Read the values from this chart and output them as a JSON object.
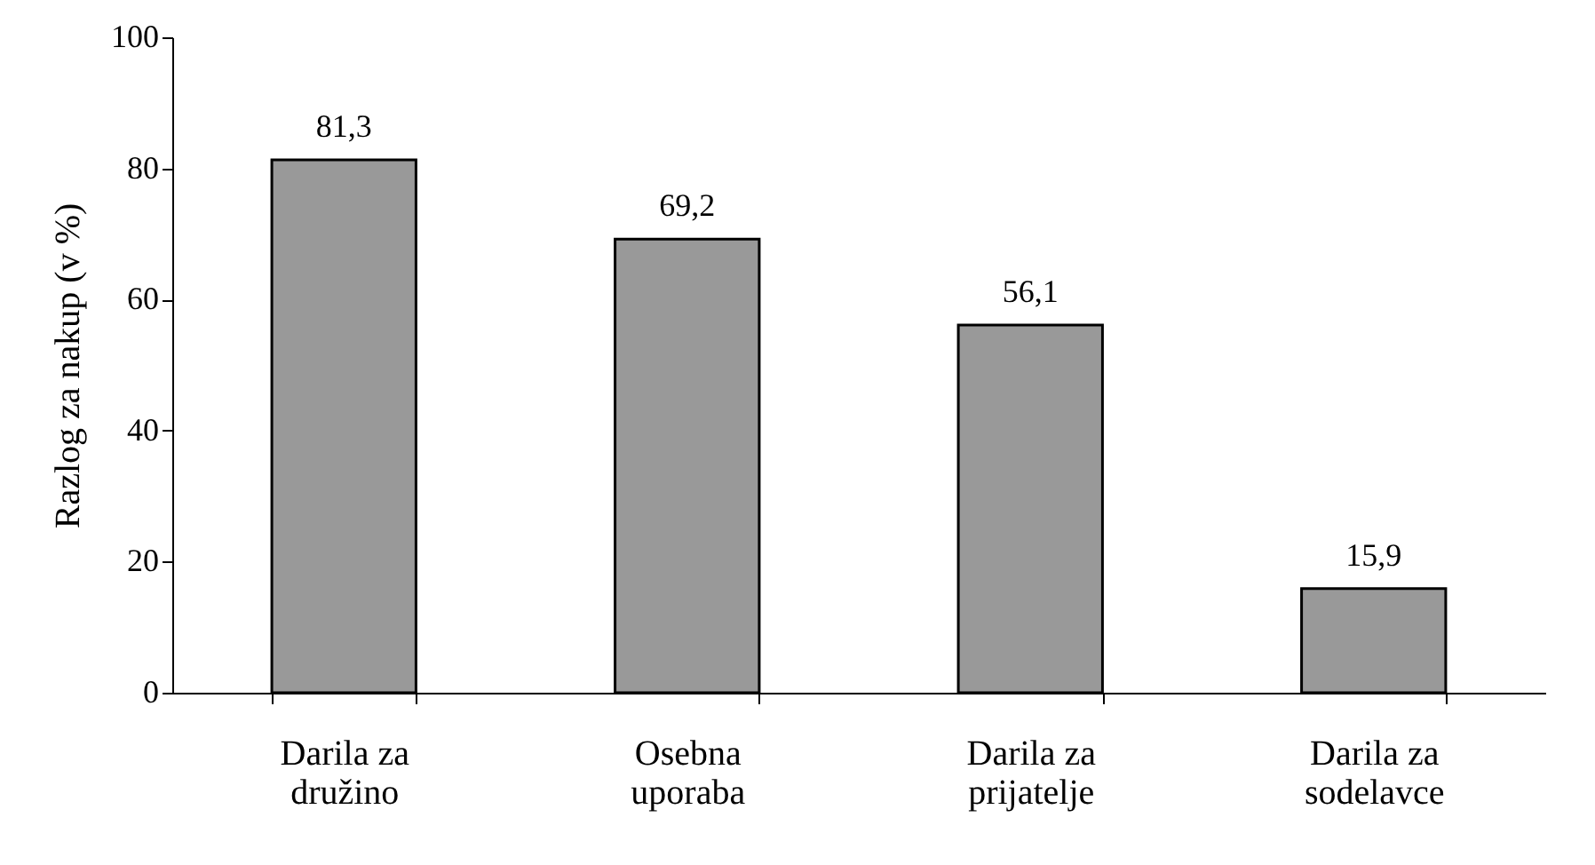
{
  "chart_data": {
    "type": "bar",
    "ylabel": "Razlog za nakup (v %)",
    "categories": [
      "Darila za družino",
      "Osebna uporaba",
      "Darila za prijatelje",
      "Darila za sodelavce"
    ],
    "values": [
      81.3,
      69.2,
      56.1,
      15.9
    ],
    "value_labels": [
      "81,3",
      "69,2",
      "56,1",
      "15,9"
    ],
    "color": "#999999",
    "ylim": [
      0,
      100
    ],
    "yticks": [
      0,
      20,
      40,
      60,
      80,
      100
    ],
    "grid": false
  }
}
